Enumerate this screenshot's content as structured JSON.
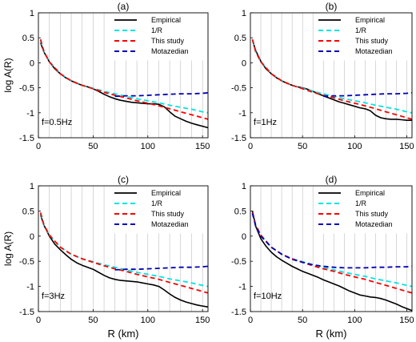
{
  "panels": [
    {
      "title": "(a)",
      "annotation": "f=0.5Hz",
      "show_ylabel": true,
      "show_xlabel": false
    },
    {
      "title": "(b)",
      "annotation": "f=1Hz",
      "show_ylabel": false,
      "show_xlabel": false
    },
    {
      "title": "(c)",
      "annotation": "f=3Hz",
      "show_ylabel": true,
      "show_xlabel": true
    },
    {
      "title": "(d)",
      "annotation": "f=10Hz",
      "show_ylabel": false,
      "show_xlabel": true
    }
  ],
  "chart_data": [
    {
      "type": "line",
      "title": "(a)",
      "annotation": "f=0.5Hz",
      "xlabel": "",
      "ylabel": "log A(R)",
      "xlim": [
        0,
        155
      ],
      "ylim": [
        -1.5,
        1
      ],
      "xticks": [
        0,
        50,
        100,
        150
      ],
      "yticks": [
        -1.5,
        -1,
        -0.5,
        0,
        0.5,
        1
      ],
      "grid": true,
      "legend_position": "top-right",
      "series": [
        {
          "name": "Empirical",
          "color": "#000000",
          "dash": "solid",
          "x": [
            2,
            5,
            10,
            15,
            20,
            25,
            30,
            35,
            40,
            45,
            50,
            55,
            60,
            65,
            70,
            75,
            80,
            85,
            90,
            95,
            100,
            105,
            110,
            115,
            120,
            125,
            130,
            135,
            140,
            145,
            150,
            155
          ],
          "y": [
            0.4,
            0.22,
            0.02,
            -0.12,
            -0.22,
            -0.3,
            -0.36,
            -0.41,
            -0.45,
            -0.48,
            -0.52,
            -0.57,
            -0.63,
            -0.68,
            -0.72,
            -0.75,
            -0.77,
            -0.79,
            -0.8,
            -0.81,
            -0.82,
            -0.82,
            -0.83,
            -0.88,
            -0.98,
            -1.07,
            -1.12,
            -1.17,
            -1.21,
            -1.24,
            -1.27,
            -1.3
          ]
        },
        {
          "name": "1/R",
          "color": "#00e5e5",
          "dash": "dashed",
          "x": [
            2,
            5,
            10,
            20,
            30,
            40,
            50,
            60,
            70,
            80,
            90,
            100,
            110,
            120,
            130,
            140,
            150,
            155
          ],
          "y": [
            0.45,
            0.22,
            0.02,
            -0.22,
            -0.36,
            -0.45,
            -0.51,
            -0.57,
            -0.62,
            -0.67,
            -0.72,
            -0.76,
            -0.8,
            -0.85,
            -0.89,
            -0.93,
            -0.98,
            -1.0
          ]
        },
        {
          "name": "This study",
          "color": "#ff0000",
          "dash": "dashed",
          "x": [
            2,
            5,
            10,
            20,
            30,
            40,
            50,
            60,
            70,
            80,
            90,
            100,
            110,
            120,
            130,
            140,
            150,
            155
          ],
          "y": [
            0.47,
            0.23,
            0.02,
            -0.22,
            -0.36,
            -0.45,
            -0.52,
            -0.59,
            -0.65,
            -0.7,
            -0.76,
            -0.81,
            -0.86,
            -0.92,
            -0.98,
            -1.04,
            -1.1,
            -1.13
          ]
        },
        {
          "name": "Motazedian",
          "color": "#0000b4",
          "dash": "dashed",
          "x": [
            70,
            80,
            90,
            100,
            110,
            120,
            130,
            140,
            150,
            155
          ],
          "y": [
            -0.67,
            -0.66,
            -0.66,
            -0.65,
            -0.64,
            -0.63,
            -0.62,
            -0.62,
            -0.61,
            -0.6
          ]
        }
      ]
    },
    {
      "type": "line",
      "title": "(b)",
      "annotation": "f=1Hz",
      "xlabel": "",
      "ylabel": "",
      "xlim": [
        0,
        155
      ],
      "ylim": [
        -1.5,
        1
      ],
      "xticks": [
        0,
        50,
        100,
        150
      ],
      "yticks": [
        -1.5,
        -1,
        -0.5,
        0,
        0.5,
        1
      ],
      "grid": true,
      "legend_position": "top-right",
      "series": [
        {
          "name": "Empirical",
          "color": "#000000",
          "dash": "solid",
          "x": [
            2,
            5,
            10,
            15,
            20,
            25,
            30,
            35,
            40,
            45,
            50,
            55,
            60,
            65,
            70,
            75,
            80,
            85,
            90,
            95,
            100,
            105,
            110,
            115,
            120,
            125,
            130,
            135,
            140,
            145,
            150,
            155
          ],
          "y": [
            0.45,
            0.25,
            0.03,
            -0.12,
            -0.22,
            -0.3,
            -0.36,
            -0.41,
            -0.45,
            -0.48,
            -0.5,
            -0.53,
            -0.57,
            -0.62,
            -0.66,
            -0.7,
            -0.74,
            -0.78,
            -0.81,
            -0.84,
            -0.87,
            -0.9,
            -0.92,
            -0.96,
            -1.05,
            -1.1,
            -1.12,
            -1.13,
            -1.13,
            -1.14,
            -1.15,
            -1.15
          ]
        },
        {
          "name": "1/R",
          "color": "#00e5e5",
          "dash": "dashed",
          "x": [
            2,
            5,
            10,
            20,
            30,
            40,
            50,
            60,
            70,
            80,
            90,
            100,
            110,
            120,
            130,
            140,
            150,
            155
          ],
          "y": [
            0.45,
            0.22,
            0.02,
            -0.22,
            -0.36,
            -0.45,
            -0.51,
            -0.57,
            -0.62,
            -0.67,
            -0.72,
            -0.76,
            -0.8,
            -0.85,
            -0.89,
            -0.93,
            -0.98,
            -1.0
          ]
        },
        {
          "name": "This study",
          "color": "#ff0000",
          "dash": "dashed",
          "x": [
            2,
            5,
            10,
            20,
            30,
            40,
            50,
            60,
            70,
            80,
            90,
            100,
            110,
            120,
            130,
            140,
            150,
            155
          ],
          "y": [
            0.47,
            0.23,
            0.02,
            -0.22,
            -0.36,
            -0.45,
            -0.52,
            -0.59,
            -0.65,
            -0.7,
            -0.76,
            -0.81,
            -0.86,
            -0.92,
            -0.98,
            -1.04,
            -1.1,
            -1.13
          ]
        },
        {
          "name": "Motazedian",
          "color": "#0000b4",
          "dash": "dashed",
          "x": [
            70,
            80,
            90,
            100,
            110,
            120,
            130,
            140,
            150,
            155
          ],
          "y": [
            -0.67,
            -0.66,
            -0.66,
            -0.65,
            -0.64,
            -0.63,
            -0.62,
            -0.62,
            -0.61,
            -0.6
          ]
        }
      ]
    },
    {
      "type": "line",
      "title": "(c)",
      "annotation": "f=3Hz",
      "xlabel": "R (km)",
      "ylabel": "log A(R)",
      "xlim": [
        0,
        155
      ],
      "ylim": [
        -1.5,
        1
      ],
      "xticks": [
        0,
        50,
        100,
        150
      ],
      "yticks": [
        -1.5,
        -1,
        -0.5,
        0,
        0.5,
        1
      ],
      "grid": true,
      "legend_position": "top-right",
      "series": [
        {
          "name": "Empirical",
          "color": "#000000",
          "dash": "solid",
          "x": [
            2,
            5,
            10,
            15,
            20,
            25,
            30,
            35,
            40,
            45,
            50,
            55,
            60,
            65,
            70,
            75,
            80,
            85,
            90,
            95,
            100,
            105,
            110,
            115,
            120,
            125,
            130,
            135,
            140,
            145,
            150,
            155
          ],
          "y": [
            0.42,
            0.22,
            0.0,
            -0.16,
            -0.27,
            -0.37,
            -0.46,
            -0.53,
            -0.58,
            -0.62,
            -0.66,
            -0.72,
            -0.78,
            -0.83,
            -0.86,
            -0.88,
            -0.89,
            -0.9,
            -0.91,
            -0.93,
            -0.95,
            -0.97,
            -1.0,
            -1.07,
            -1.15,
            -1.22,
            -1.27,
            -1.31,
            -1.34,
            -1.37,
            -1.39,
            -1.41
          ]
        },
        {
          "name": "1/R",
          "color": "#00e5e5",
          "dash": "dashed",
          "x": [
            2,
            5,
            10,
            20,
            30,
            40,
            50,
            60,
            70,
            80,
            90,
            100,
            110,
            120,
            130,
            140,
            150,
            155
          ],
          "y": [
            0.45,
            0.22,
            0.02,
            -0.22,
            -0.36,
            -0.45,
            -0.51,
            -0.57,
            -0.62,
            -0.67,
            -0.72,
            -0.76,
            -0.8,
            -0.85,
            -0.89,
            -0.93,
            -0.98,
            -1.0
          ]
        },
        {
          "name": "This study",
          "color": "#ff0000",
          "dash": "dashed",
          "x": [
            2,
            5,
            10,
            20,
            30,
            40,
            50,
            60,
            70,
            80,
            90,
            100,
            110,
            120,
            130,
            140,
            150,
            155
          ],
          "y": [
            0.47,
            0.23,
            0.02,
            -0.22,
            -0.36,
            -0.45,
            -0.52,
            -0.59,
            -0.65,
            -0.7,
            -0.76,
            -0.81,
            -0.86,
            -0.92,
            -0.98,
            -1.04,
            -1.1,
            -1.13
          ]
        },
        {
          "name": "Motazedian",
          "color": "#0000b4",
          "dash": "dashed",
          "x": [
            70,
            80,
            90,
            100,
            110,
            120,
            130,
            140,
            150,
            155
          ],
          "y": [
            -0.67,
            -0.66,
            -0.66,
            -0.65,
            -0.64,
            -0.63,
            -0.62,
            -0.62,
            -0.61,
            -0.6
          ]
        }
      ]
    },
    {
      "type": "line",
      "title": "(d)",
      "annotation": "f=10Hz",
      "xlabel": "R (km)",
      "ylabel": "",
      "xlim": [
        0,
        155
      ],
      "ylim": [
        -1.5,
        1
      ],
      "xticks": [
        0,
        50,
        100,
        150
      ],
      "yticks": [
        -1.5,
        -1,
        -0.5,
        0,
        0.5,
        1
      ],
      "grid": true,
      "legend_position": "top-right",
      "series": [
        {
          "name": "Empirical",
          "color": "#000000",
          "dash": "solid",
          "x": [
            2,
            5,
            10,
            15,
            20,
            25,
            30,
            35,
            40,
            45,
            50,
            55,
            60,
            65,
            70,
            75,
            80,
            85,
            90,
            95,
            100,
            105,
            110,
            115,
            120,
            125,
            130,
            135,
            140,
            145,
            150,
            155
          ],
          "y": [
            0.5,
            0.2,
            -0.05,
            -0.2,
            -0.32,
            -0.41,
            -0.48,
            -0.54,
            -0.6,
            -0.65,
            -0.7,
            -0.74,
            -0.78,
            -0.82,
            -0.87,
            -0.91,
            -0.95,
            -0.99,
            -1.04,
            -1.09,
            -1.13,
            -1.17,
            -1.19,
            -1.21,
            -1.22,
            -1.24,
            -1.27,
            -1.31,
            -1.35,
            -1.4,
            -1.44,
            -1.48
          ]
        },
        {
          "name": "1/R",
          "color": "#00e5e5",
          "dash": "dashed",
          "x": [
            2,
            5,
            10,
            20,
            30,
            40,
            50,
            60,
            70,
            80,
            90,
            100,
            110,
            120,
            130,
            140,
            150,
            155
          ],
          "y": [
            0.45,
            0.22,
            0.02,
            -0.22,
            -0.36,
            -0.45,
            -0.51,
            -0.57,
            -0.62,
            -0.67,
            -0.72,
            -0.76,
            -0.8,
            -0.85,
            -0.89,
            -0.93,
            -0.98,
            -1.0
          ]
        },
        {
          "name": "This study",
          "color": "#ff0000",
          "dash": "dashed",
          "x": [
            2,
            5,
            10,
            20,
            30,
            40,
            50,
            60,
            70,
            80,
            90,
            100,
            110,
            120,
            130,
            140,
            150,
            155
          ],
          "y": [
            0.47,
            0.23,
            0.02,
            -0.22,
            -0.36,
            -0.45,
            -0.52,
            -0.59,
            -0.65,
            -0.7,
            -0.76,
            -0.81,
            -0.86,
            -0.92,
            -0.98,
            -1.04,
            -1.1,
            -1.13
          ]
        },
        {
          "name": "Motazedian",
          "color": "#0000b4",
          "dash": "dashed",
          "x": [
            2,
            5,
            10,
            20,
            30,
            40,
            50,
            60,
            70,
            80,
            90,
            100,
            110,
            120,
            130,
            140,
            150,
            155
          ],
          "y": [
            0.45,
            0.2,
            0.0,
            -0.22,
            -0.36,
            -0.46,
            -0.52,
            -0.57,
            -0.6,
            -0.62,
            -0.63,
            -0.63,
            -0.63,
            -0.62,
            -0.62,
            -0.61,
            -0.61,
            -0.6
          ]
        }
      ]
    }
  ]
}
